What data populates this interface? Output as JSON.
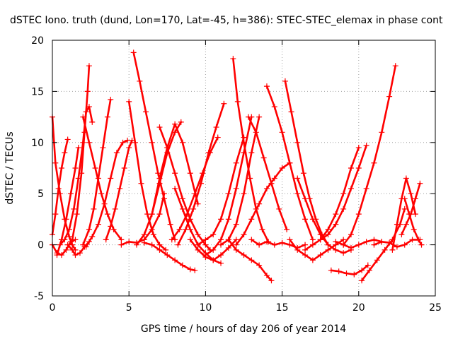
{
  "chart_data": {
    "type": "scatter",
    "title": "dSTEC Iono. truth (dund, Lon=170, Lat=-45, h=386): STEC-STEC_elemax in phase cont",
    "xlabel": "GPS time / hours of day 206 of year 2014",
    "ylabel": "dSTEC  / TECUs",
    "xlim": [
      0,
      25
    ],
    "ylim": [
      -5,
      20
    ],
    "xticks": [
      0,
      5,
      10,
      15,
      20,
      25
    ],
    "yticks": [
      -5,
      0,
      5,
      10,
      15,
      20
    ],
    "grid": true,
    "marker": "+",
    "color": "#ff0000",
    "series": [
      {
        "x": [
          0.0,
          0.2,
          0.5,
          0.8,
          1.1,
          1.3,
          1.5
        ],
        "y": [
          12.5,
          8.0,
          5.0,
          2.5,
          0.8,
          0.0,
          -0.5
        ]
      },
      {
        "x": [
          0.0,
          0.2,
          0.4,
          0.6,
          0.8,
          1.0
        ],
        "y": [
          1.0,
          3.0,
          5.5,
          7.5,
          9.0,
          10.3
        ]
      },
      {
        "x": [
          0.0,
          0.3,
          0.6,
          0.9,
          1.2,
          1.5
        ],
        "y": [
          0.0,
          -0.8,
          -1.0,
          -0.5,
          0.3,
          0.5
        ]
      },
      {
        "x": [
          0.3,
          0.6,
          0.9,
          1.2,
          1.5,
          1.7
        ],
        "y": [
          -1.0,
          0.5,
          2.5,
          5.0,
          7.5,
          9.5
        ]
      },
      {
        "x": [
          0.5,
          0.8,
          1.1,
          1.4,
          1.7,
          2.0,
          2.2,
          2.4,
          2.6
        ],
        "y": [
          0.0,
          0.5,
          1.5,
          3.5,
          6.5,
          10.0,
          13.0,
          13.5,
          12.0
        ]
      },
      {
        "x": [
          1.3,
          1.6,
          1.9,
          2.1,
          2.3,
          2.4
        ],
        "y": [
          0.5,
          3.0,
          7.0,
          11.0,
          15.0,
          17.5
        ]
      },
      {
        "x": [
          1.0,
          1.3,
          1.5,
          1.8,
          2.1,
          2.4
        ],
        "y": [
          0.0,
          -0.5,
          -1.0,
          -0.8,
          -0.2,
          0.3
        ]
      },
      {
        "x": [
          2.0,
          2.4,
          2.8,
          3.2,
          3.6,
          4.0,
          4.5
        ],
        "y": [
          12.5,
          10.0,
          7.5,
          5.0,
          3.0,
          1.5,
          0.5
        ]
      },
      {
        "x": [
          2.0,
          2.4,
          2.7,
          3.0,
          3.3,
          3.6,
          3.8
        ],
        "y": [
          0.0,
          1.5,
          3.5,
          6.5,
          9.5,
          12.5,
          14.2
        ]
      },
      {
        "x": [
          2.2,
          2.6,
          3.0,
          3.4,
          3.8,
          4.2,
          4.6,
          4.9
        ],
        "y": [
          -0.2,
          0.8,
          2.0,
          4.0,
          6.5,
          9.0,
          10.0,
          10.2
        ]
      },
      {
        "x": [
          3.5,
          3.8,
          4.1,
          4.4,
          4.7,
          5.0,
          5.2
        ],
        "y": [
          0.5,
          1.8,
          3.5,
          5.5,
          7.5,
          9.5,
          10.2
        ]
      },
      {
        "x": [
          4.5,
          5.0,
          5.5,
          6.0,
          6.5,
          7.0,
          7.3
        ],
        "y": [
          0.0,
          0.3,
          0.2,
          0.5,
          1.5,
          3.0,
          5.0
        ]
      },
      {
        "x": [
          5.0,
          5.4,
          5.8,
          6.2,
          6.6,
          7.0,
          7.4
        ],
        "y": [
          14.0,
          10.0,
          6.0,
          3.0,
          1.0,
          0.0,
          -0.5
        ]
      },
      {
        "x": [
          5.3,
          5.7,
          6.1,
          6.5,
          6.9,
          7.3,
          7.7,
          8.0
        ],
        "y": [
          18.8,
          16.0,
          13.0,
          10.0,
          7.0,
          4.5,
          2.0,
          0.5
        ]
      },
      {
        "x": [
          5.5,
          6.0,
          6.5,
          7.0,
          7.5,
          8.0,
          8.4
        ],
        "y": [
          0.0,
          1.0,
          3.0,
          6.0,
          9.0,
          11.0,
          12.0
        ]
      },
      {
        "x": [
          6.0,
          6.5,
          7.0,
          7.5,
          8.0,
          8.5,
          9.0,
          9.3
        ],
        "y": [
          0.2,
          0.0,
          -0.5,
          -1.0,
          -1.5,
          -2.0,
          -2.4,
          -2.5
        ]
      },
      {
        "x": [
          6.5,
          7.0,
          7.5,
          8.0,
          8.5,
          9.0,
          9.5
        ],
        "y": [
          3.0,
          6.5,
          9.5,
          11.8,
          10.0,
          7.0,
          4.0
        ]
      },
      {
        "x": [
          7.0,
          7.5,
          8.0,
          8.5,
          9.0,
          9.5,
          10.0,
          10.3
        ],
        "y": [
          11.5,
          9.5,
          7.0,
          4.5,
          2.5,
          1.0,
          0.0,
          -0.5
        ]
      },
      {
        "x": [
          7.8,
          8.3,
          8.8,
          9.3,
          9.8,
          10.3,
          10.8
        ],
        "y": [
          0.5,
          1.5,
          3.0,
          5.0,
          7.0,
          9.0,
          10.5
        ]
      },
      {
        "x": [
          8.0,
          8.5,
          9.0,
          9.5,
          10.0,
          10.5,
          11.0
        ],
        "y": [
          5.5,
          3.5,
          1.5,
          0.0,
          -0.8,
          -1.5,
          -1.8
        ]
      },
      {
        "x": [
          8.2,
          8.7,
          9.2,
          9.7,
          10.2,
          10.7,
          11.2
        ],
        "y": [
          0.0,
          1.5,
          3.5,
          6.0,
          9.0,
          11.5,
          13.8
        ]
      },
      {
        "x": [
          9.0,
          9.5,
          10.0,
          10.5,
          11.0,
          11.5,
          12.0
        ],
        "y": [
          0.5,
          -0.5,
          -1.2,
          -1.5,
          -1.0,
          -0.3,
          0.5
        ]
      },
      {
        "x": [
          9.5,
          10.0,
          10.5,
          11.0,
          11.5,
          12.0,
          12.5
        ],
        "y": [
          0.0,
          0.5,
          1.0,
          2.5,
          5.0,
          8.0,
          10.5
        ]
      },
      {
        "x": [
          10.0,
          10.5,
          11.0,
          11.5,
          12.0,
          12.5,
          13.0
        ],
        "y": [
          -1.0,
          -0.5,
          0.5,
          2.5,
          5.5,
          9.0,
          12.5
        ]
      },
      {
        "x": [
          11.0,
          11.5,
          12.0,
          12.5,
          13.0,
          13.5
        ],
        "y": [
          0.0,
          0.5,
          2.0,
          5.0,
          9.0,
          12.5
        ]
      },
      {
        "x": [
          11.8,
          12.1,
          12.5,
          12.9,
          13.3,
          13.7,
          14.1
        ],
        "y": [
          18.2,
          14.0,
          10.0,
          6.5,
          3.5,
          1.5,
          0.3
        ]
      },
      {
        "x": [
          11.5,
          12.0,
          12.5,
          13.0,
          13.5,
          14.0,
          14.3
        ],
        "y": [
          0.5,
          -0.5,
          -1.0,
          -1.5,
          -2.0,
          -3.0,
          -3.5
        ]
      },
      {
        "x": [
          12.0,
          12.5,
          13.0,
          13.5,
          14.0,
          14.5,
          15.0,
          15.5
        ],
        "y": [
          0.0,
          1.0,
          2.5,
          4.0,
          5.5,
          6.5,
          7.5,
          8.0
        ]
      },
      {
        "x": [
          12.8,
          13.3,
          13.8,
          14.3,
          14.8,
          15.3
        ],
        "y": [
          12.5,
          11.0,
          8.5,
          6.0,
          3.5,
          1.5
        ]
      },
      {
        "x": [
          13.0,
          13.5,
          14.0,
          14.5,
          15.0,
          15.5,
          16.0,
          16.5
        ],
        "y": [
          0.5,
          0.0,
          0.3,
          0.0,
          0.2,
          0.0,
          -0.3,
          0.0
        ]
      },
      {
        "x": [
          14.0,
          14.5,
          15.0,
          15.5,
          16.0,
          16.5,
          17.0
        ],
        "y": [
          15.5,
          13.5,
          11.0,
          8.0,
          5.0,
          2.5,
          0.5
        ]
      },
      {
        "x": [
          15.2,
          15.6,
          16.0,
          16.4,
          16.8,
          17.2,
          17.6,
          18.0
        ],
        "y": [
          16.0,
          13.0,
          10.0,
          7.0,
          4.5,
          2.5,
          1.0,
          0.0
        ]
      },
      {
        "x": [
          15.5,
          16.0,
          16.5,
          17.0,
          17.5,
          18.0,
          18.5,
          19.0
        ],
        "y": [
          0.5,
          -0.5,
          -1.0,
          -1.5,
          -1.0,
          -0.5,
          0.0,
          0.5
        ]
      },
      {
        "x": [
          16.0,
          16.5,
          17.0,
          17.5,
          18.0,
          18.5,
          19.0,
          19.5
        ],
        "y": [
          6.5,
          4.5,
          2.5,
          1.0,
          0.0,
          -0.5,
          -0.8,
          -0.5
        ]
      },
      {
        "x": [
          16.5,
          17.0,
          17.5,
          18.0,
          18.5,
          19.0,
          19.5,
          20.0
        ],
        "y": [
          -0.5,
          0.0,
          0.5,
          1.5,
          3.0,
          5.0,
          7.5,
          9.5
        ]
      },
      {
        "x": [
          17.5,
          18.0,
          18.5,
          19.0,
          19.5,
          20.0,
          20.5
        ],
        "y": [
          0.5,
          1.0,
          2.0,
          3.5,
          5.5,
          7.5,
          9.7
        ]
      },
      {
        "x": [
          18.2,
          18.7,
          19.2,
          19.7,
          20.2,
          20.6
        ],
        "y": [
          -2.5,
          -2.6,
          -2.8,
          -2.9,
          -2.5,
          -2.0
        ]
      },
      {
        "x": [
          18.5,
          19.0,
          19.5,
          20.0,
          20.5,
          21.0,
          21.5
        ],
        "y": [
          0.3,
          0.0,
          -0.3,
          0.0,
          0.3,
          0.5,
          0.3
        ]
      },
      {
        "x": [
          19.0,
          19.5,
          20.0,
          20.5,
          21.0,
          21.5,
          22.0,
          22.4
        ],
        "y": [
          0.0,
          1.0,
          3.0,
          5.5,
          8.0,
          11.0,
          14.5,
          17.5
        ]
      },
      {
        "x": [
          20.2,
          20.7,
          21.2,
          21.7,
          22.2,
          22.7,
          23.0
        ],
        "y": [
          -3.5,
          -2.5,
          -1.5,
          -0.5,
          0.5,
          2.0,
          3.5
        ]
      },
      {
        "x": [
          21.0,
          21.5,
          22.0,
          22.5,
          23.0,
          23.5,
          24.0
        ],
        "y": [
          0.0,
          0.3,
          0.2,
          -0.2,
          0.0,
          0.5,
          0.5
        ]
      },
      {
        "x": [
          22.2,
          22.5,
          22.8,
          23.1,
          23.4,
          23.7
        ],
        "y": [
          -0.5,
          2.0,
          4.5,
          6.5,
          5.0,
          3.0
        ]
      },
      {
        "x": [
          22.8,
          23.1,
          23.4,
          23.7,
          24.0
        ],
        "y": [
          1.0,
          2.0,
          3.0,
          4.5,
          6.0
        ]
      },
      {
        "x": [
          23.0,
          23.3,
          23.6,
          23.9,
          24.1
        ],
        "y": [
          4.5,
          3.0,
          1.5,
          0.5,
          0.0
        ]
      }
    ]
  }
}
